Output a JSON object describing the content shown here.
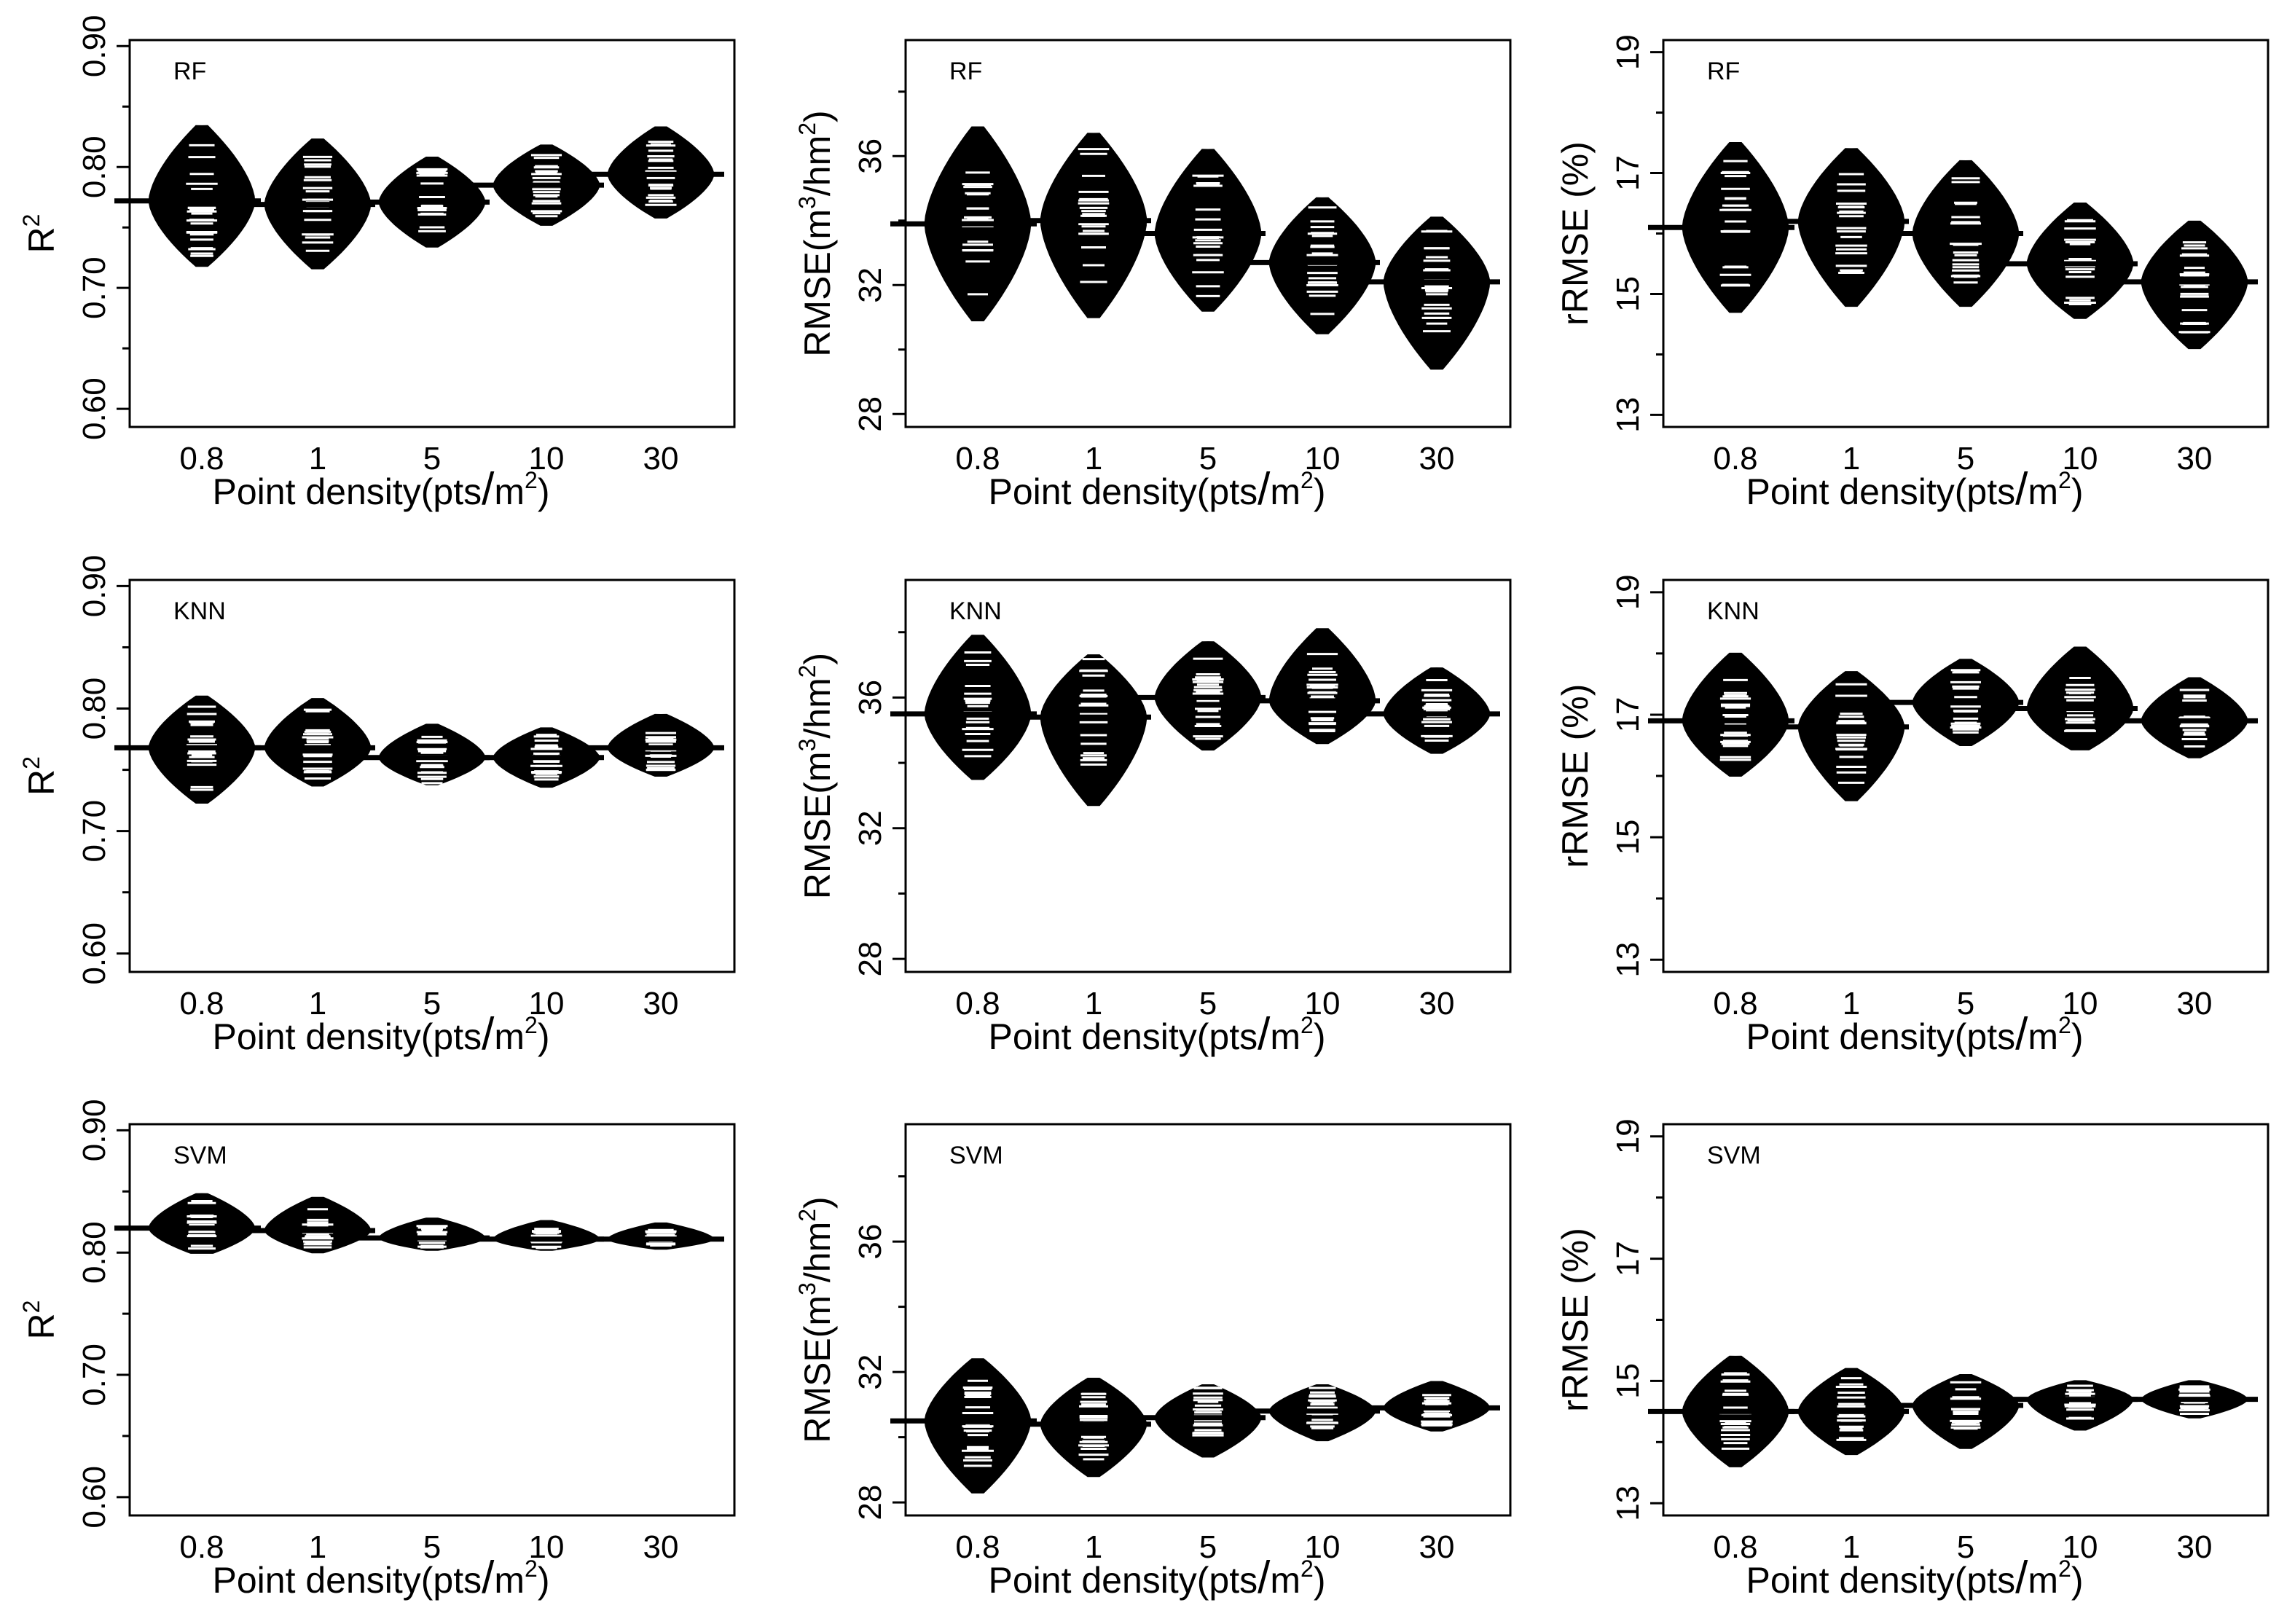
{
  "figure": {
    "x_label_main": "Point density(pts",
    "x_label_slash": "/",
    "x_label_unit": "m",
    "x_label_sup": "2",
    "x_label_close": ")"
  },
  "colors": {
    "ink": "#000000",
    "background": "#ffffff",
    "stripe": "#ffffff"
  },
  "chart_data": [
    {
      "type": "beanplot",
      "model": "RF",
      "metric": "R2",
      "categories": [
        "0.8",
        "1",
        "5",
        "10",
        "30"
      ],
      "yticks": [
        "0.60",
        "0.70",
        "0.80",
        "0.90"
      ],
      "ylim": [
        0.585,
        0.905
      ],
      "ylabel": {
        "base": "R",
        "sup": "2"
      },
      "means": [
        0.772,
        0.769,
        0.771,
        0.785,
        0.794
      ],
      "max": [
        0.834,
        0.823,
        0.808,
        0.818,
        0.833
      ],
      "min": [
        0.718,
        0.716,
        0.734,
        0.752,
        0.758
      ]
    },
    {
      "type": "beanplot",
      "model": "RF",
      "metric": "RMSE",
      "categories": [
        "0.8",
        "1",
        "5",
        "10",
        "30"
      ],
      "yticks": [
        "28",
        "32",
        "36"
      ],
      "ylim": [
        27.6,
        39.6
      ],
      "ylabel": {
        "base": "RMSE(m",
        "sup": "3",
        "mid": "/hm",
        "sup2": "2",
        "end": ")"
      },
      "means": [
        33.9,
        34.0,
        33.6,
        32.7,
        32.1
      ],
      "max": [
        36.9,
        36.7,
        36.2,
        34.7,
        34.1
      ],
      "min": [
        30.9,
        31.0,
        31.2,
        30.5,
        29.4
      ]
    },
    {
      "type": "beanplot",
      "model": "RF",
      "metric": "rRMSE",
      "categories": [
        "0.8",
        "1",
        "5",
        "10",
        "30"
      ],
      "yticks": [
        "13",
        "15",
        "17",
        "19"
      ],
      "ylim": [
        12.8,
        19.2
      ],
      "ylabel": {
        "base": "rRMSE (%)"
      },
      "means": [
        16.1,
        16.2,
        16.0,
        15.5,
        15.2
      ],
      "max": [
        17.5,
        17.4,
        17.2,
        16.5,
        16.2
      ],
      "min": [
        14.7,
        14.8,
        14.8,
        14.6,
        14.1
      ]
    },
    {
      "type": "beanplot",
      "model": "KNN",
      "metric": "R2",
      "categories": [
        "0.8",
        "1",
        "5",
        "10",
        "30"
      ],
      "yticks": [
        "0.60",
        "0.70",
        "0.80",
        "0.90"
      ],
      "ylim": [
        0.585,
        0.905
      ],
      "ylabel": {
        "base": "R",
        "sup": "2"
      },
      "means": [
        0.768,
        0.768,
        0.76,
        0.76,
        0.768
      ],
      "max": [
        0.81,
        0.808,
        0.787,
        0.784,
        0.795
      ],
      "min": [
        0.723,
        0.737,
        0.738,
        0.736,
        0.745
      ]
    },
    {
      "type": "beanplot",
      "model": "KNN",
      "metric": "RMSE",
      "categories": [
        "0.8",
        "1",
        "5",
        "10",
        "30"
      ],
      "yticks": [
        "28",
        "32",
        "36"
      ],
      "ylim": [
        27.6,
        39.6
      ],
      "ylabel": {
        "base": "RMSE(m",
        "sup": "3",
        "mid": "/hm",
        "sup2": "2",
        "end": ")"
      },
      "means": [
        35.5,
        35.4,
        36.0,
        35.9,
        35.5
      ],
      "max": [
        37.9,
        37.3,
        37.7,
        38.1,
        36.9
      ],
      "min": [
        33.5,
        32.7,
        34.4,
        34.6,
        34.3
      ]
    },
    {
      "type": "beanplot",
      "model": "KNN",
      "metric": "rRMSE",
      "categories": [
        "0.8",
        "1",
        "5",
        "10",
        "30"
      ],
      "yticks": [
        "13",
        "15",
        "17",
        "19"
      ],
      "ylim": [
        12.8,
        19.2
      ],
      "ylabel": {
        "base": "rRMSE (%)"
      },
      "means": [
        16.9,
        16.8,
        17.2,
        17.1,
        16.9
      ],
      "max": [
        18.0,
        17.7,
        17.9,
        18.1,
        17.6
      ],
      "min": [
        16.0,
        15.6,
        16.5,
        16.4,
        16.3
      ]
    },
    {
      "type": "beanplot",
      "model": "SVM",
      "metric": "R2",
      "categories": [
        "0.8",
        "1",
        "5",
        "10",
        "30"
      ],
      "yticks": [
        "0.60",
        "0.70",
        "0.80",
        "0.90"
      ],
      "ylim": [
        0.585,
        0.905
      ],
      "ylabel": {
        "base": "R",
        "sup": "2"
      },
      "means": [
        0.82,
        0.818,
        0.812,
        0.811,
        0.811
      ],
      "max": [
        0.848,
        0.845,
        0.828,
        0.826,
        0.824
      ],
      "min": [
        0.798,
        0.8,
        0.802,
        0.802,
        0.803
      ]
    },
    {
      "type": "beanplot",
      "model": "SVM",
      "metric": "RMSE",
      "categories": [
        "0.8",
        "1",
        "5",
        "10",
        "30"
      ],
      "yticks": [
        "28",
        "32",
        "36"
      ],
      "ylim": [
        27.6,
        39.6
      ],
      "ylabel": {
        "base": "RMSE(m",
        "sup": "3",
        "mid": "/hm",
        "sup2": "2",
        "end": ")"
      },
      "means": [
        30.5,
        30.4,
        30.6,
        30.8,
        30.9
      ],
      "max": [
        32.4,
        31.8,
        31.6,
        31.6,
        31.7
      ],
      "min": [
        28.3,
        28.8,
        29.4,
        29.9,
        30.2
      ]
    },
    {
      "type": "beanplot",
      "model": "SVM",
      "metric": "rRMSE",
      "categories": [
        "0.8",
        "1",
        "5",
        "10",
        "30"
      ],
      "yticks": [
        "13",
        "15",
        "17",
        "19"
      ],
      "ylim": [
        12.8,
        19.2
      ],
      "ylabel": {
        "base": "rRMSE (%)"
      },
      "means": [
        14.5,
        14.5,
        14.6,
        14.7,
        14.7
      ],
      "max": [
        15.4,
        15.2,
        15.1,
        15.0,
        15.0
      ],
      "min": [
        13.6,
        13.8,
        13.9,
        14.2,
        14.4
      ]
    }
  ]
}
